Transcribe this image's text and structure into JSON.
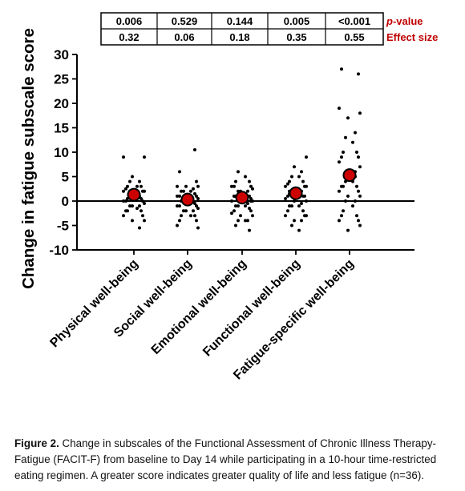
{
  "chart_data": {
    "type": "scatter",
    "ylabel": "Change in fatigue subscale score",
    "ylim": [
      -10,
      30
    ],
    "yticks": [
      "30",
      "25",
      "20",
      "15",
      "10",
      "5",
      "0",
      "-5",
      "-10"
    ],
    "categories": [
      "Physical well-being",
      "Social well-being",
      "Emotional well-being",
      "Functional well-being",
      "Fatigue-specific well-being"
    ],
    "reference_line": 0,
    "means": [
      1.3,
      0.3,
      0.7,
      1.6,
      5.3
    ],
    "individual_points": [
      [
        9,
        9,
        5,
        4,
        4,
        3,
        3,
        3,
        2.5,
        2,
        2,
        2,
        1.5,
        1,
        1,
        1,
        0.5,
        0.5,
        0,
        0,
        0,
        -0.5,
        -1,
        -1,
        -1,
        -1.5,
        -2,
        -2,
        -2,
        -3,
        -3,
        -4,
        -4,
        -5.5,
        2,
        1
      ],
      [
        10.5,
        6,
        4,
        3,
        3,
        3,
        2.5,
        2,
        2,
        2,
        1.5,
        1,
        1,
        1,
        0.5,
        0.5,
        0,
        0,
        0,
        0,
        -0.5,
        -1,
        -1,
        -1,
        -1.5,
        -2,
        -2,
        -2,
        -3,
        -3,
        -3,
        -4,
        -4,
        -5,
        -5.5,
        1
      ],
      [
        6,
        5,
        4,
        4,
        3,
        3,
        3,
        2.5,
        2,
        2,
        2,
        1.5,
        1,
        1,
        1,
        0.5,
        0,
        0,
        0,
        -0.5,
        -1,
        -1,
        -1,
        -1.5,
        -2,
        -2,
        -2.5,
        -3,
        -3,
        -4,
        -4,
        -4,
        -5,
        -6,
        1,
        0
      ],
      [
        9,
        7,
        6,
        5,
        5,
        4,
        4,
        3.5,
        3,
        3,
        3,
        2.5,
        2,
        2,
        2,
        1.5,
        1,
        1,
        1,
        0.5,
        0,
        0,
        -0.5,
        -1,
        -1,
        -1,
        -2,
        -2,
        -3,
        -3,
        -3,
        -4,
        -4,
        -5,
        -6,
        2
      ],
      [
        27,
        26,
        19,
        18,
        17,
        14,
        13,
        12,
        10,
        10,
        9,
        9,
        8,
        7,
        5,
        5,
        4,
        4,
        3,
        3,
        3,
        2,
        2,
        1,
        1,
        0,
        0,
        -1,
        -2,
        -3,
        -3,
        -4,
        -4,
        -5,
        -6,
        6
      ]
    ],
    "stats_table": {
      "p_values": [
        "0.006",
        "0.529",
        "0.144",
        "0.005",
        "<0.001"
      ],
      "effect_sizes": [
        "0.32",
        "0.06",
        "0.18",
        "0.35",
        "0.55"
      ],
      "p_label_prefix": "p",
      "p_label_suffix": "-value",
      "effect_label": "Effect size"
    },
    "colors": {
      "mean_marker": "#cc0000",
      "table_label": "#c00000",
      "points": "#000000"
    }
  },
  "caption": {
    "label": "Figure 2.",
    "text": " Change in subscales of the Functional Assessment of Chronic Illness Therapy-Fatigue (FACIT-F) from baseline to Day 14 while participating in a 10-hour time-restricted eating regimen. A greater score indicates greater quality of life and less fatigue (n=36)."
  }
}
